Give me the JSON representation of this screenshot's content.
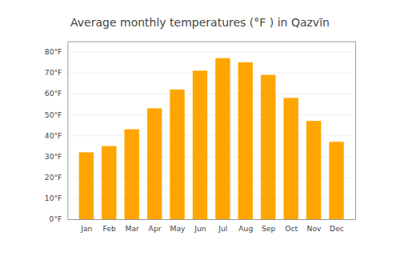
{
  "chart_data": {
    "type": "bar",
    "title": "Average monthly temperatures (°F ) in Qazvīn",
    "categories": [
      "Jan",
      "Feb",
      "Mar",
      "Apr",
      "May",
      "Jun",
      "Jul",
      "Aug",
      "Sep",
      "Oct",
      "Nov",
      "Dec"
    ],
    "values": [
      32,
      35,
      43,
      53,
      62,
      71,
      77,
      75,
      69,
      58,
      47,
      37
    ],
    "color": "#FFA500",
    "ylim": [
      0,
      85
    ],
    "yticks": [
      {
        "value": 0,
        "label": "0°F"
      },
      {
        "value": 10,
        "label": "10°F"
      },
      {
        "value": 20,
        "label": "20°F"
      },
      {
        "value": 30,
        "label": "30°F"
      },
      {
        "value": 40,
        "label": "40°F"
      },
      {
        "value": 50,
        "label": "50°F"
      },
      {
        "value": 60,
        "label": "60°F"
      },
      {
        "value": 70,
        "label": "70°F"
      },
      {
        "value": 80,
        "label": "80°F"
      }
    ],
    "grid": true
  }
}
